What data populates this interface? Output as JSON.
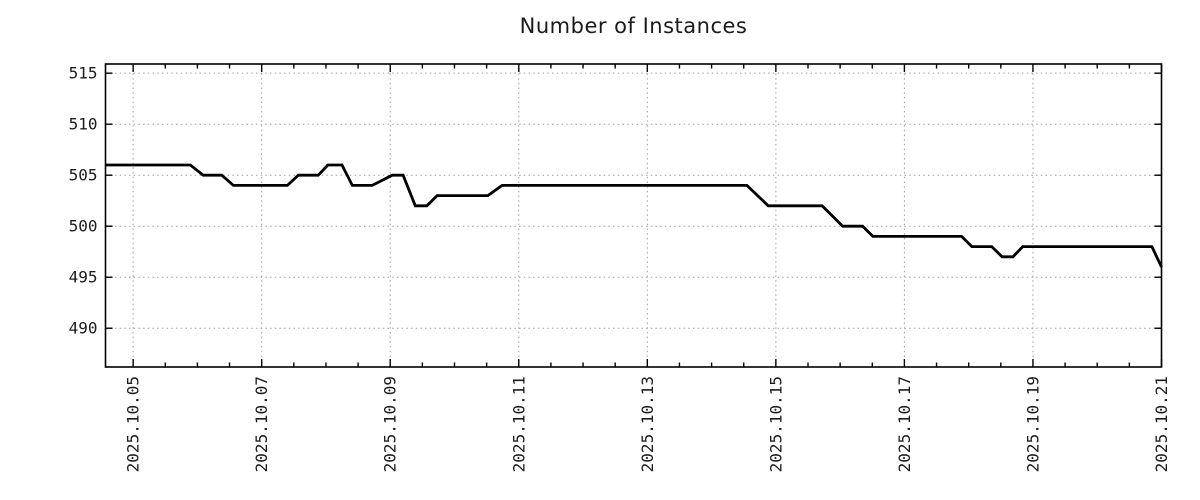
{
  "chart_data": {
    "type": "line",
    "title": "Number of Instances",
    "legend": "none",
    "series": [
      {
        "name": "instances",
        "color": "#000000",
        "points": [
          [
            4.57,
            506
          ],
          [
            5.89,
            506
          ],
          [
            6.09,
            505
          ],
          [
            6.38,
            505
          ],
          [
            6.56,
            504
          ],
          [
            7.4,
            504
          ],
          [
            7.57,
            505
          ],
          [
            7.88,
            505
          ],
          [
            8.03,
            506
          ],
          [
            8.25,
            506
          ],
          [
            8.41,
            504
          ],
          [
            8.72,
            504
          ],
          [
            9.03,
            505
          ],
          [
            9.2,
            505
          ],
          [
            9.39,
            502
          ],
          [
            9.57,
            502
          ],
          [
            9.73,
            503
          ],
          [
            10.52,
            503
          ],
          [
            10.74,
            504
          ],
          [
            14.55,
            504
          ],
          [
            14.88,
            502
          ],
          [
            15.72,
            502
          ],
          [
            16.04,
            500
          ],
          [
            16.35,
            500
          ],
          [
            16.51,
            499
          ],
          [
            17.89,
            499
          ],
          [
            18.05,
            498
          ],
          [
            18.36,
            498
          ],
          [
            18.52,
            497
          ],
          [
            18.69,
            497
          ],
          [
            18.84,
            498
          ],
          [
            20.85,
            498
          ],
          [
            21.0,
            496
          ]
        ]
      }
    ],
    "x_axis": {
      "label": "",
      "unit": "date (year.month.day)",
      "range_days": [
        4.57,
        21.0
      ],
      "minor_tick_step_days": 0.5,
      "ticks": [
        {
          "day": 5,
          "label": "2025.10.05"
        },
        {
          "day": 7,
          "label": "2025.10.07"
        },
        {
          "day": 9,
          "label": "2025.10.09"
        },
        {
          "day": 11,
          "label": "2025.10.11"
        },
        {
          "day": 13,
          "label": "2025.10.13"
        },
        {
          "day": 15,
          "label": "2025.10.15"
        },
        {
          "day": 17,
          "label": "2025.10.17"
        },
        {
          "day": 19,
          "label": "2025.10.19"
        },
        {
          "day": 21,
          "label": "2025.10.21"
        }
      ]
    },
    "y_axis": {
      "label": "",
      "range": [
        486.2,
        515.9
      ],
      "ticks": [
        490,
        495,
        500,
        505,
        510,
        515
      ]
    },
    "style": {
      "grid": "dotted",
      "grid_color": "#9e9e9e",
      "frame_color": "#000000",
      "tick_color": "#000000",
      "text_color": "#1c1c1c",
      "background": "#ffffff",
      "line_width": 3
    }
  }
}
